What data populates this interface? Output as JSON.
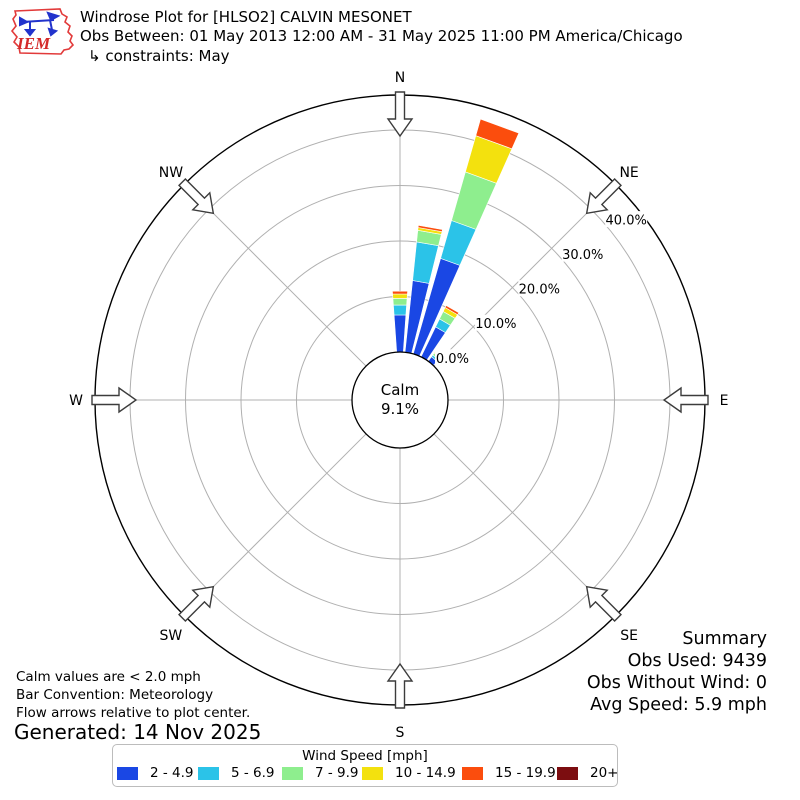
{
  "header": {
    "logo_text": "IEM",
    "title": "Windrose Plot for [HLSO2] CALVIN MESONET",
    "subtitle": "Obs Between: 01 May 2013 12:00 AM - 31 May 2025 11:00 PM America/Chicago",
    "constraints": "↳ constraints: May"
  },
  "chart_data": {
    "type": "windrose",
    "units": "mph",
    "direction_bin_degrees": 10,
    "bar_opening_degrees": 8,
    "speed_bins": [
      {
        "label": "2 - 4.9",
        "color": "#1a47e4"
      },
      {
        "label": "5 - 6.9",
        "color": "#2bc3e8"
      },
      {
        "label": "7 - 9.9",
        "color": "#8eee8e"
      },
      {
        "label": "10 - 14.9",
        "color": "#f3e10e"
      },
      {
        "label": "15 - 19.9",
        "color": "#fb4d0d"
      },
      {
        "label": "20+",
        "color": "#7c0d10"
      }
    ],
    "bars": [
      {
        "azimuth_deg": 0,
        "segments_pct": [
          6.7,
          1.8,
          1.2,
          0.8,
          0.5,
          0
        ],
        "total_pct": 11.0
      },
      {
        "azimuth_deg": 10,
        "segments_pct": [
          13.0,
          7.0,
          2.1,
          0.5,
          0.4,
          0
        ],
        "total_pct": 23.0
      },
      {
        "azimuth_deg": 20,
        "segments_pct": [
          17.9,
          7.1,
          9.1,
          6.8,
          3.1,
          0
        ],
        "total_pct": 44.0
      },
      {
        "azimuth_deg": 30,
        "segments_pct": [
          6.0,
          1.6,
          1.5,
          0.8,
          0.4,
          0
        ],
        "total_pct": 10.3
      },
      {
        "azimuth_deg": 40,
        "segments_pct": [
          1.0,
          0.4,
          0.4,
          0.3,
          0.2,
          0
        ],
        "total_pct": 2.3
      }
    ],
    "rings_pct": [
      0,
      10,
      20,
      30,
      40
    ],
    "ring_labels": [
      "0.0%",
      "10.0%",
      "20.0%",
      "30.0%",
      "40.0%"
    ],
    "outer_boundary_pct": 46.3,
    "compass_labels": [
      "N",
      "NE",
      "E",
      "SE",
      "S",
      "SW",
      "W",
      "NW"
    ],
    "calm": {
      "label": "Calm",
      "value": "9.1%"
    },
    "grid_color": "#b0b0b0",
    "bar_convention": "Meteorology"
  },
  "summary": {
    "title": "Summary",
    "lines": [
      "Obs Used: 9439",
      "Obs Without Wind: 0",
      "Avg Speed: 5.9 mph"
    ]
  },
  "footnotes": [
    "Calm values are < 2.0 mph",
    "Bar Convention: Meteorology",
    "Flow arrows relative to plot center."
  ],
  "generated": "Generated: 14 Nov 2025",
  "legend": {
    "title": "Wind Speed [mph]"
  }
}
